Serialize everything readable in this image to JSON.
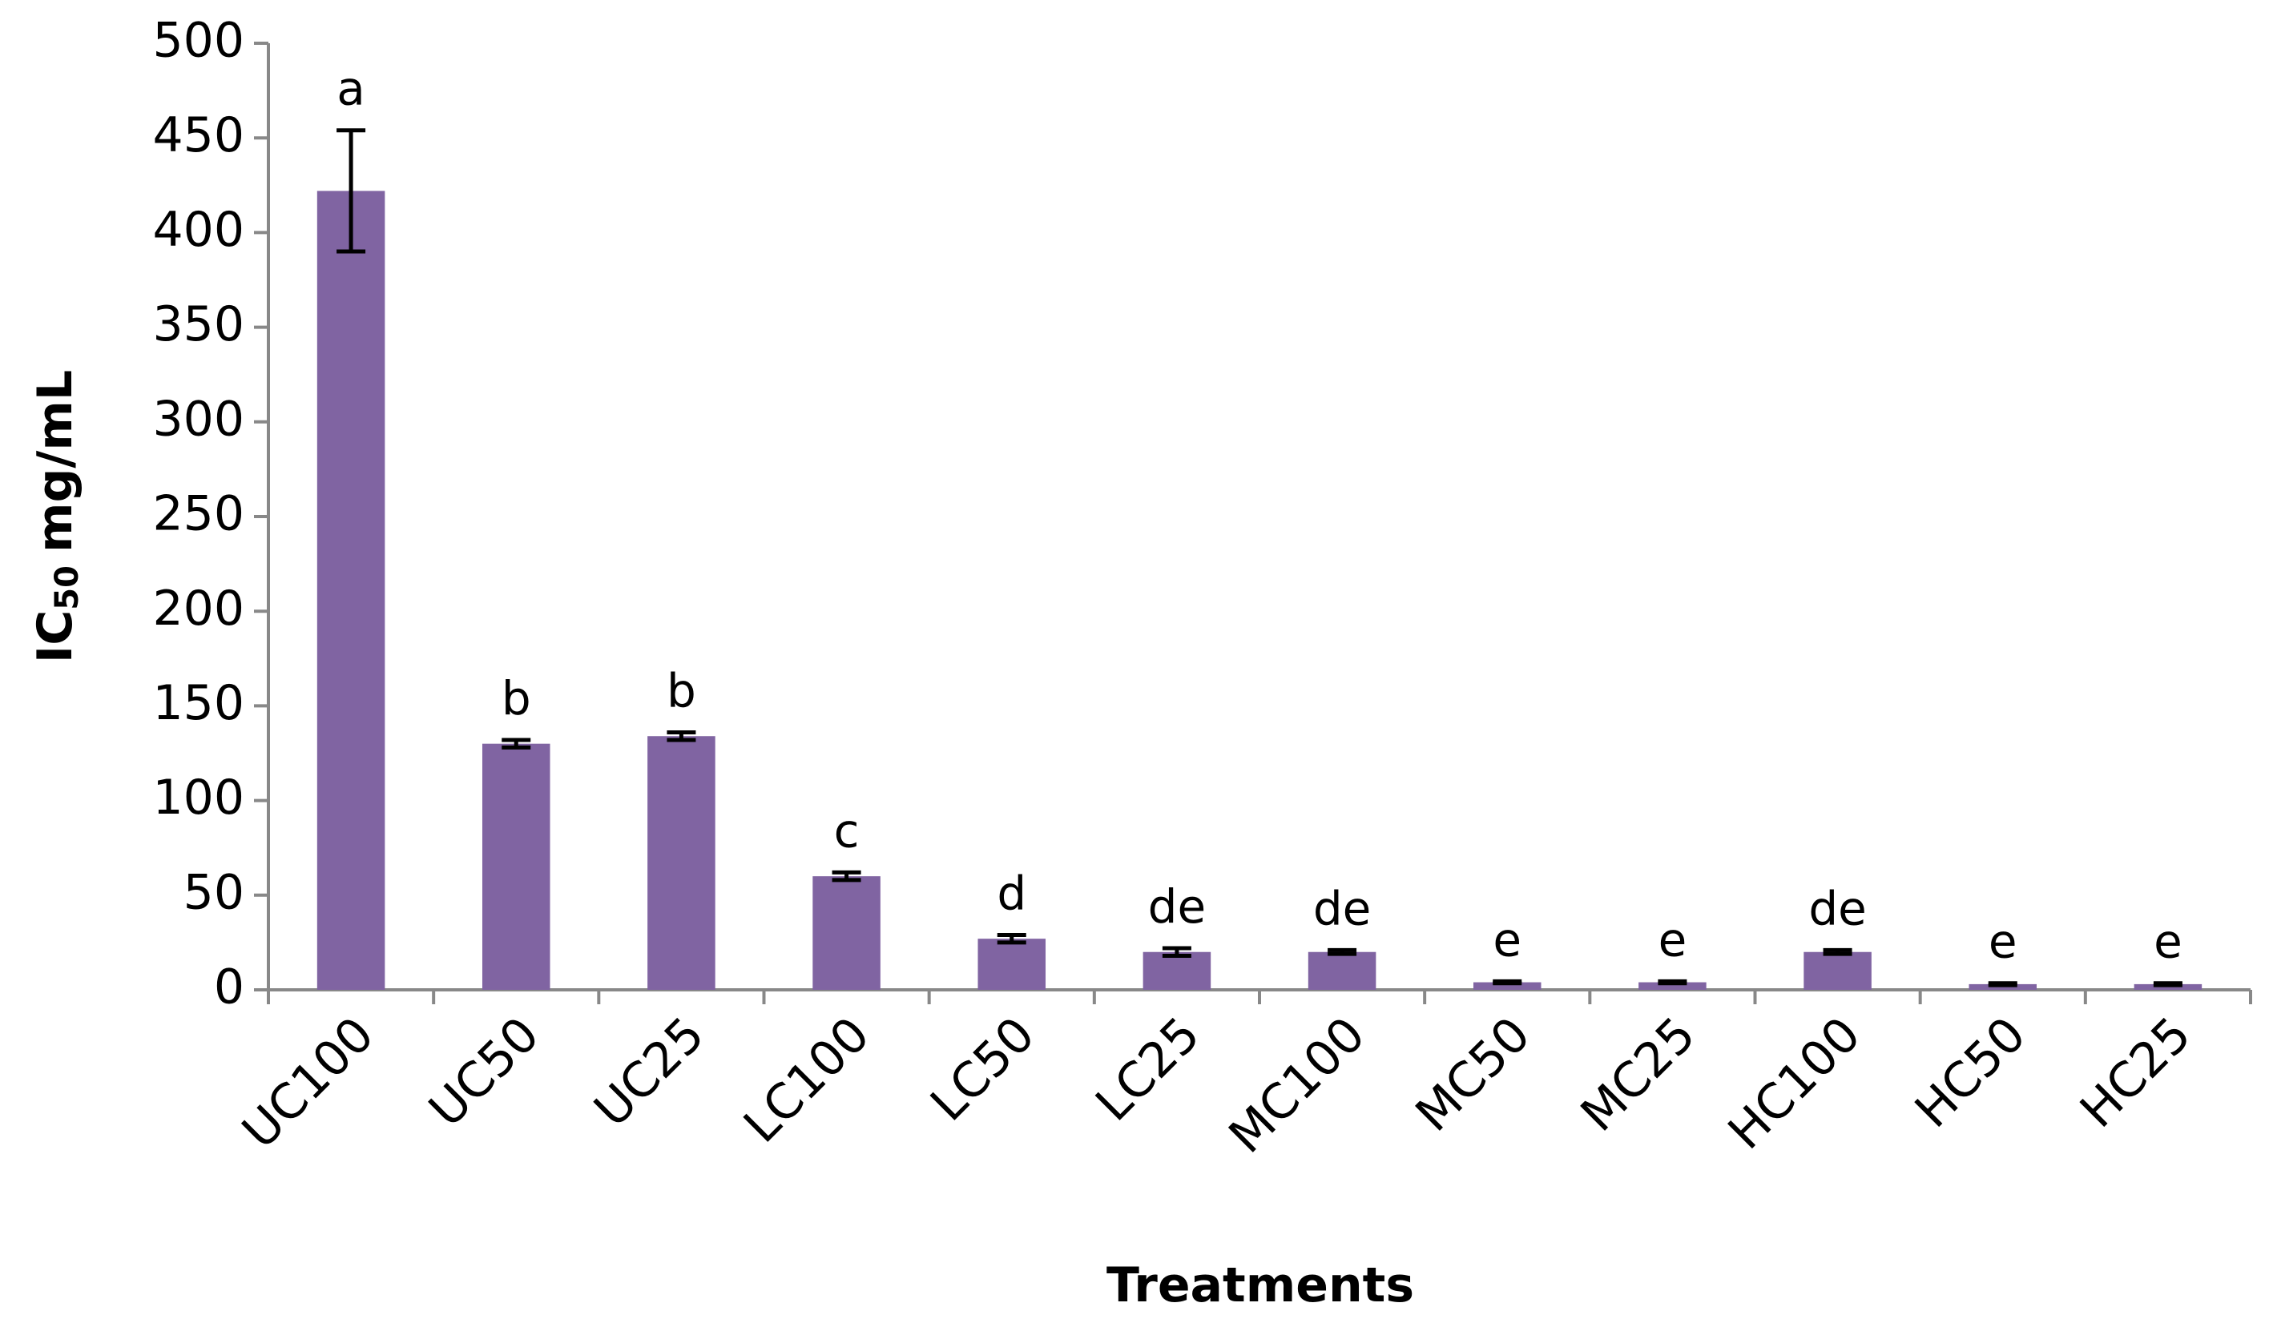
{
  "chart_data": {
    "type": "bar",
    "y_label": {
      "main": "IC",
      "sub": "50",
      "unit": "mg/mL"
    },
    "x_label": "Treatments",
    "categories": [
      "UC100",
      "UC50",
      "UC25",
      "LC100",
      "LC50",
      "LC25",
      "MC100",
      "MC50",
      "MC25",
      "HC100",
      "HC50",
      "HC25"
    ],
    "values": [
      422,
      130,
      134,
      60,
      27,
      20,
      20,
      4,
      4,
      20,
      3,
      3
    ],
    "errors": [
      32,
      2,
      2,
      2,
      2,
      2,
      1,
      0.5,
      0.5,
      1,
      0.5,
      0.5
    ],
    "letters": [
      "a",
      "b",
      "b",
      "c",
      "d",
      "de",
      "de",
      "e",
      "e",
      "de",
      "e",
      "e"
    ],
    "color": "#8064a2",
    "ylim": [
      0,
      500
    ],
    "yticks": [
      0,
      50,
      100,
      150,
      200,
      250,
      300,
      350,
      400,
      450,
      500
    ]
  }
}
